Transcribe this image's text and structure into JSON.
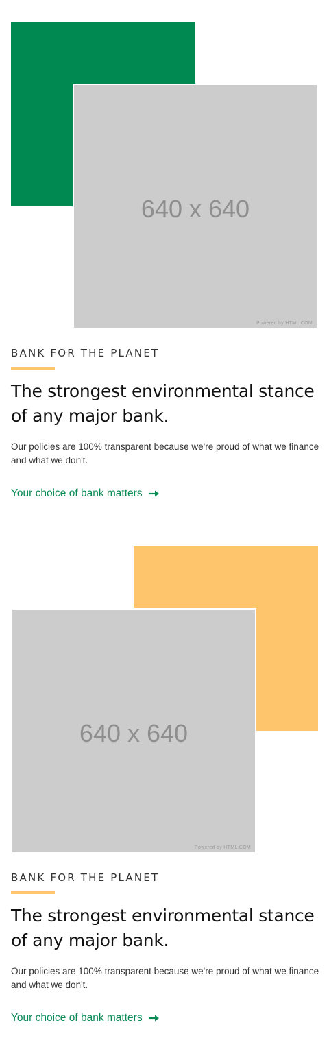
{
  "colors": {
    "green_accent": "#008a52",
    "yellow_accent": "#ffc56d",
    "link_green": "#0a8a55",
    "placeholder_gray": "#cccccc"
  },
  "sections": [
    {
      "accent_color": "#008a52",
      "image": {
        "label": "640 x 640",
        "powered_by": "Powered by HTML.COM"
      },
      "eyebrow": "BANK FOR THE PLANET",
      "headline": "The strongest environmental stance of any major bank.",
      "body": "Our policies are 100% transparent because we're proud of what we finance and what we don't.",
      "cta_label": "Your choice of bank matters",
      "cta_icon": "arrow-right-icon"
    },
    {
      "accent_color": "#ffc56d",
      "image": {
        "label": "640 x 640",
        "powered_by": "Powered by HTML.COM"
      },
      "eyebrow": "BANK FOR THE PLANET",
      "headline": "The strongest environmental stance of any major bank.",
      "body": "Our policies are 100% transparent because we're proud of what we finance and what we don't.",
      "cta_label": "Your choice of bank matters",
      "cta_icon": "arrow-right-icon"
    }
  ]
}
